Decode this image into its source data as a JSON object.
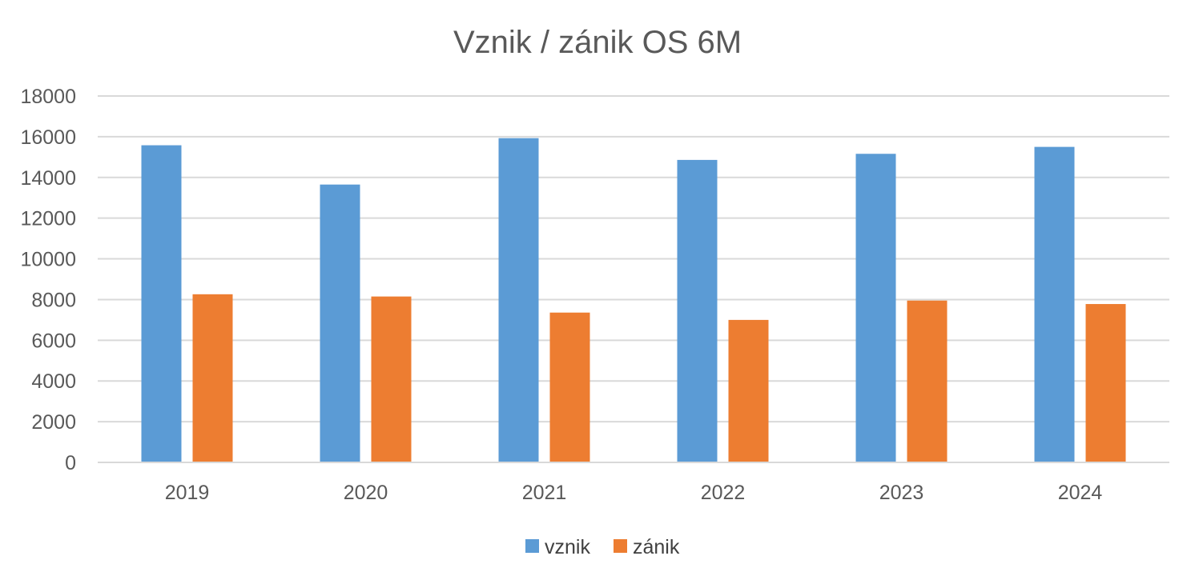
{
  "chart_data": {
    "type": "bar",
    "title": "Vznik / zánik OS 6M",
    "xlabel": "",
    "ylabel": "",
    "categories": [
      "2019",
      "2020",
      "2021",
      "2022",
      "2023",
      "2024"
    ],
    "series": [
      {
        "name": "vznik",
        "color": "#5b9bd5",
        "values": [
          15580,
          13650,
          15930,
          14860,
          15160,
          15500
        ]
      },
      {
        "name": "zánik",
        "color": "#ed7d31",
        "values": [
          8260,
          8150,
          7360,
          7000,
          7950,
          7780
        ]
      }
    ],
    "ylim": [
      0,
      18000
    ],
    "yticks": [
      "0",
      "2000",
      "4000",
      "6000",
      "8000",
      "10000",
      "12000",
      "14000",
      "16000",
      "18000"
    ],
    "grid": true,
    "legend_position": "bottom"
  }
}
